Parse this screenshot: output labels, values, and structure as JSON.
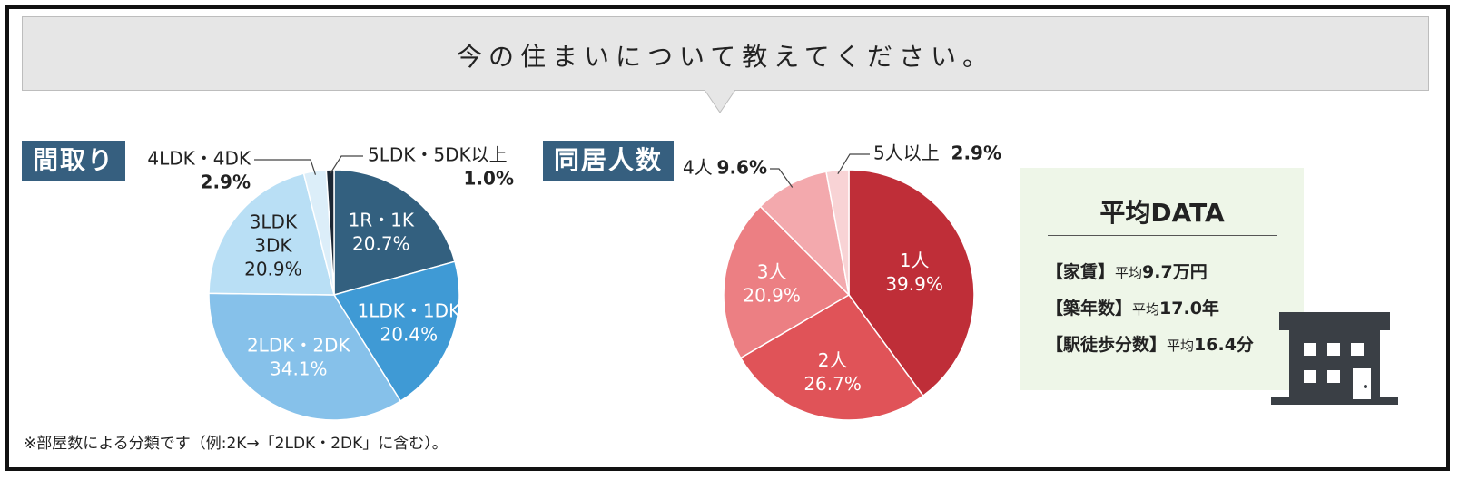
{
  "header": {
    "title": "今の住まいについて教えてください。"
  },
  "sections": {
    "madori": "間取り",
    "doukyo": "同居人数"
  },
  "colors": {
    "header_bg": "#e6e6e6",
    "label_bg": "#365f7f",
    "data_box_bg": "#eef6e8",
    "building": "#3a3f45"
  },
  "chart_data": [
    {
      "type": "pie",
      "name": "間取り",
      "slices": [
        {
          "label": "1R・1K",
          "value": 20.7,
          "display": "20.7%",
          "color": "#33607f"
        },
        {
          "label": "1LDK・1DK",
          "value": 20.4,
          "display": "20.4%",
          "color": "#3f9ad5"
        },
        {
          "label": "2LDK・2DK",
          "value": 34.1,
          "display": "34.1%",
          "color": "#86c1ea"
        },
        {
          "label": "3LDK\n3DK",
          "value": 20.9,
          "display": "20.9%",
          "color": "#b9dff5"
        },
        {
          "label": "4LDK・4DK",
          "value": 2.9,
          "display": "2.9%",
          "color": "#dceef9"
        },
        {
          "label": "5LDK・5DK以上",
          "value": 1.0,
          "display": "1.0%",
          "color": "#1b2633"
        }
      ]
    },
    {
      "type": "pie",
      "name": "同居人数",
      "slices": [
        {
          "label": "1人",
          "value": 39.9,
          "display": "39.9%",
          "color": "#bf2e38"
        },
        {
          "label": "2人",
          "value": 26.7,
          "display": "26.7%",
          "color": "#e05358"
        },
        {
          "label": "3人",
          "value": 20.9,
          "display": "20.9%",
          "color": "#ec7f83"
        },
        {
          "label": "4人",
          "value": 9.6,
          "display": "9.6%",
          "color": "#f3a9ad"
        },
        {
          "label": "5人以上",
          "value": 2.9,
          "display": "2.9%",
          "color": "#f8d3d5"
        }
      ]
    }
  ],
  "average_data": {
    "title": "平均DATA",
    "rows": [
      {
        "label": "【家賃】",
        "prefix": "平均",
        "value": "9.7万円"
      },
      {
        "label": "【築年数】",
        "prefix": "平均",
        "value": "17.0年"
      },
      {
        "label": "【駅徒歩分数】",
        "prefix": "平均",
        "value": "16.4分"
      }
    ]
  },
  "footnote": "※部屋数による分類です（例:2K→「2LDK・2DK」に含む）。",
  "icons": {
    "building": "building-icon"
  }
}
